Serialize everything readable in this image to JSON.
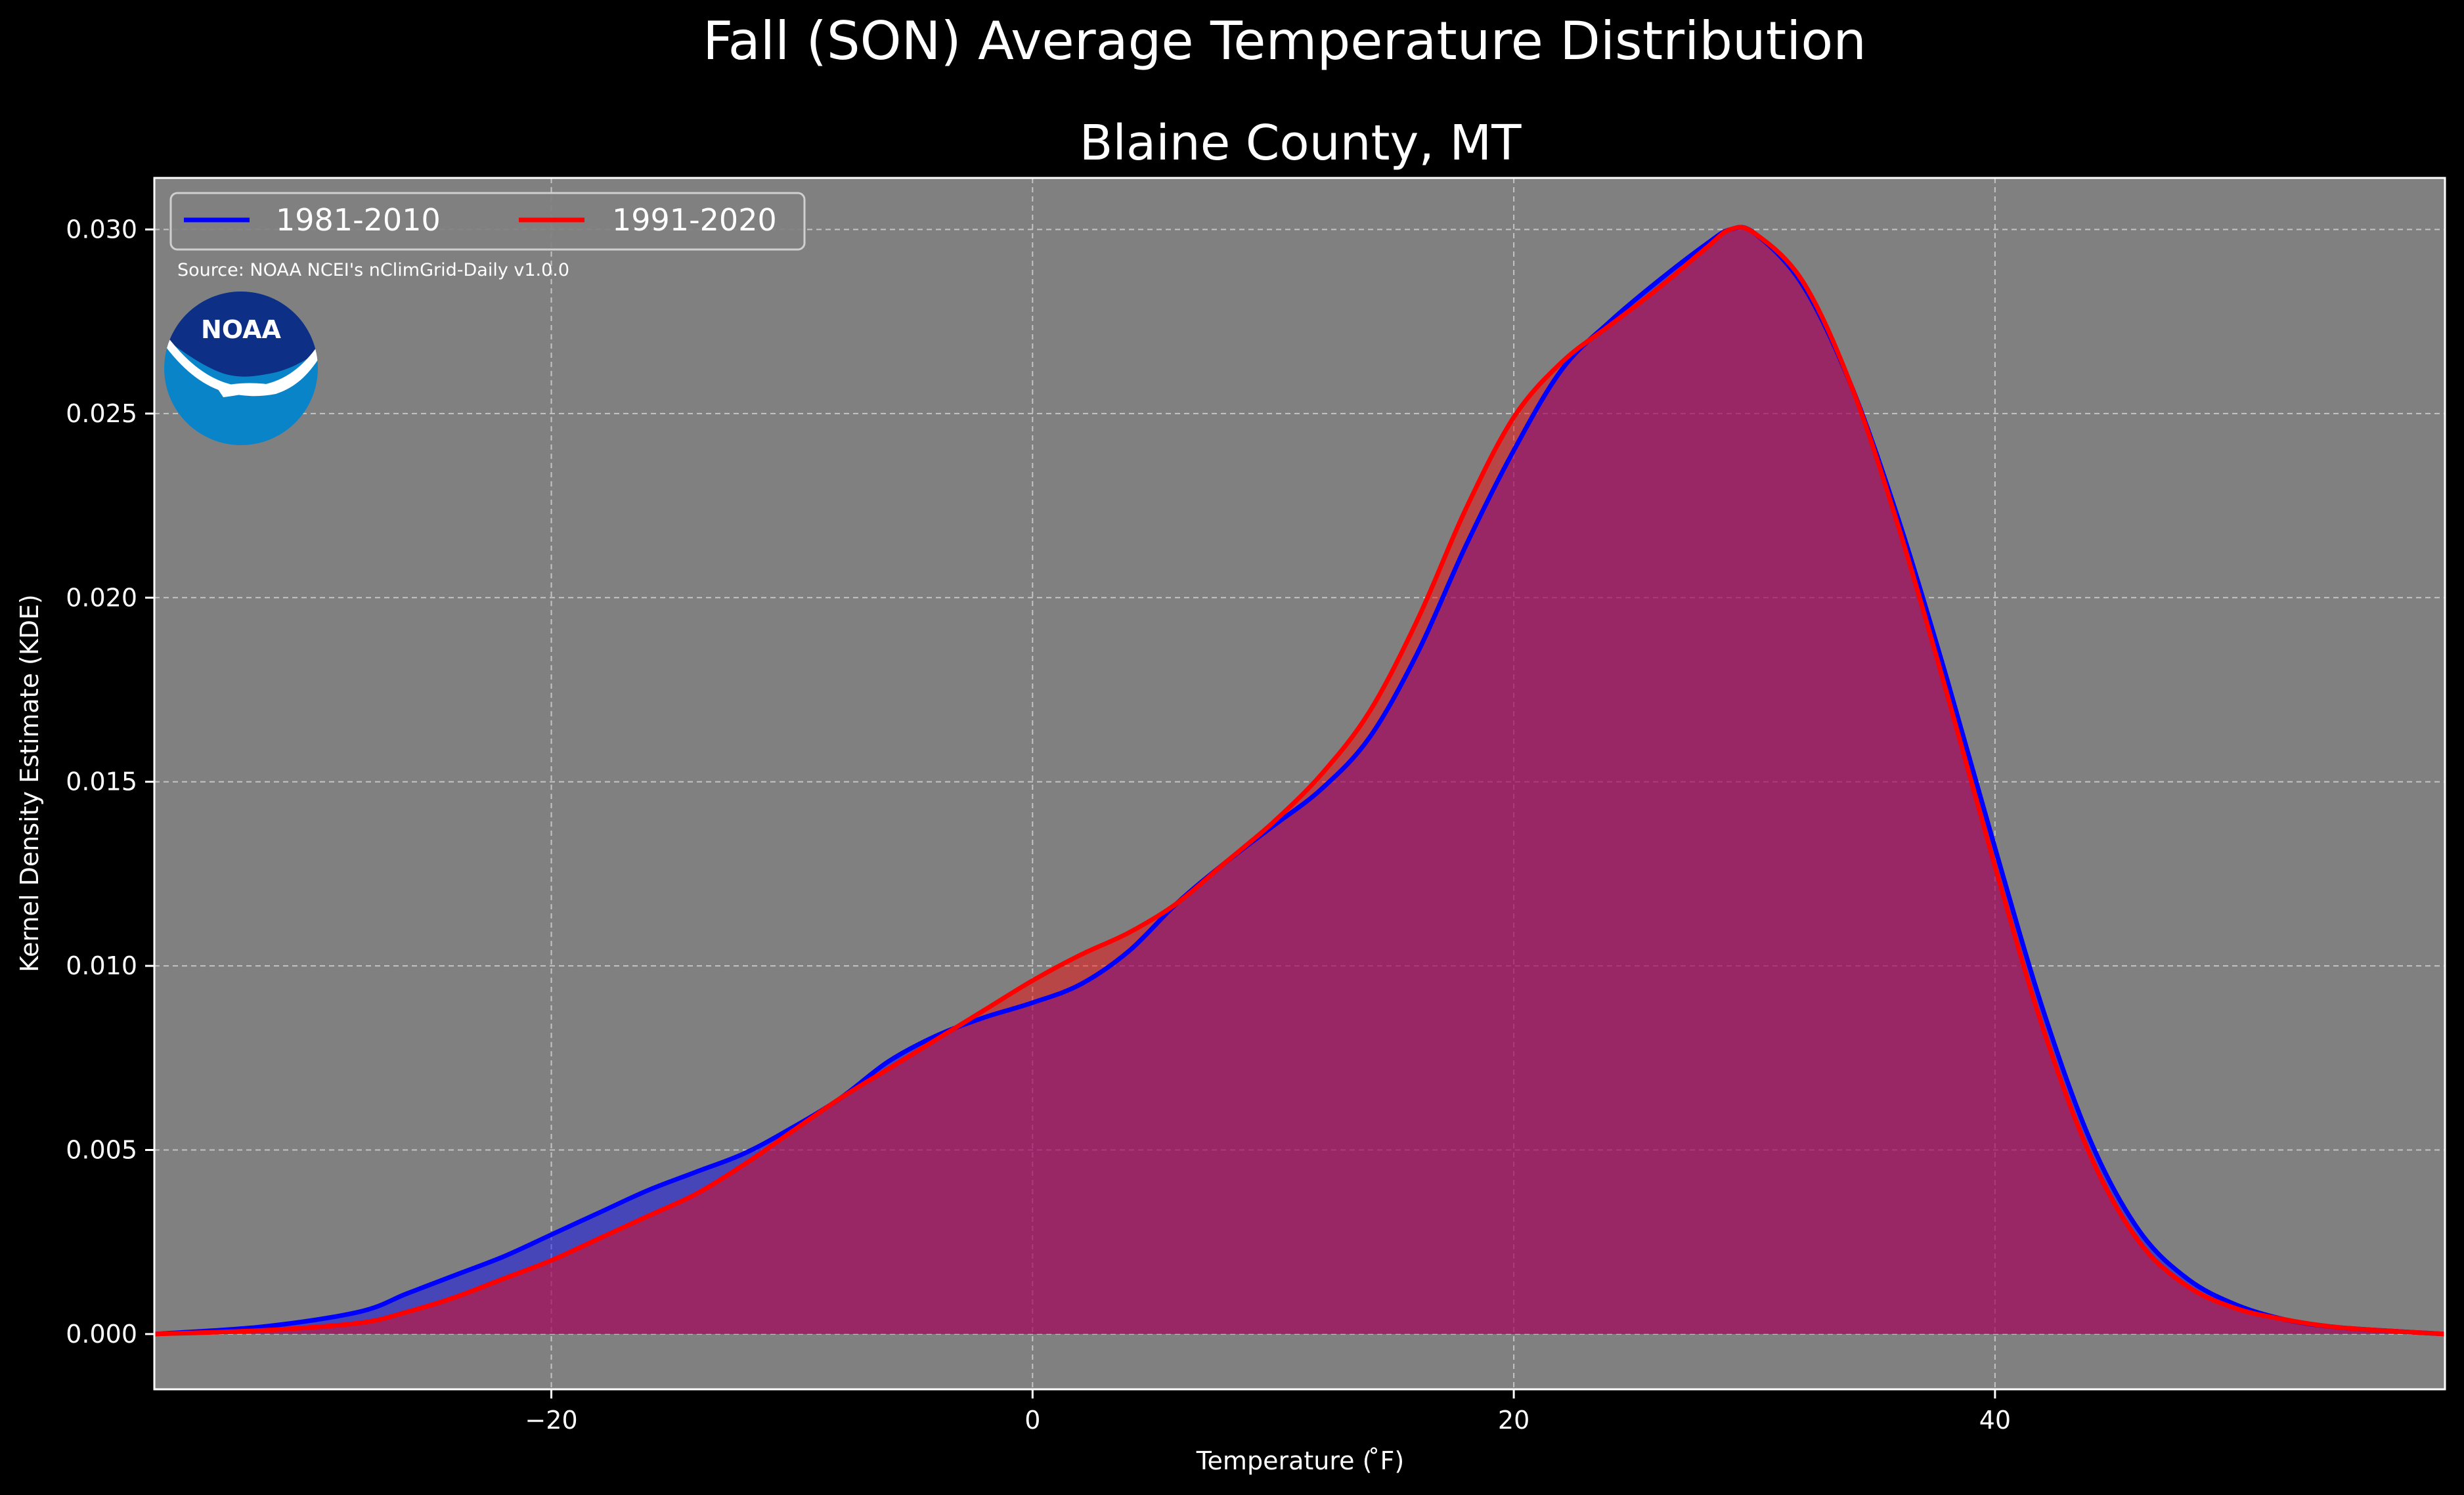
{
  "chart_data": {
    "type": "area",
    "suptitle": "Fall (SON) Average Temperature Distribution",
    "title": "Blaine County, MT",
    "xlabel": "Temperature ($^\\circ$F)",
    "xlabel_display": "Temperature ( ̊F)",
    "ylabel": "Kernel Density Estimate (KDE)",
    "xlim": [
      -36.5,
      58.7
    ],
    "ylim": [
      -0.0015,
      0.0314
    ],
    "xticks": [
      -20,
      0,
      20,
      40
    ],
    "xtick_labels": [
      "−20",
      "0",
      "20",
      "40"
    ],
    "yticks": [
      0.0,
      0.005,
      0.01,
      0.015,
      0.02,
      0.025,
      0.03
    ],
    "ytick_labels": [
      "0.000",
      "0.005",
      "0.010",
      "0.015",
      "0.020",
      "0.025",
      "0.030"
    ],
    "grid": true,
    "legend_placement": "top-left",
    "source": "Source: NOAA NCEI's nClimGrid-Daily v1.0.0",
    "logo_text": "NOAA",
    "background_color": "#000000",
    "axes_color": "#808080",
    "series": [
      {
        "name": "1981-2010",
        "color": "#0000ff",
        "fill": "#0000ff",
        "x": [
          -36.5,
          -32,
          -28,
          -26,
          -24,
          -22,
          -20,
          -18,
          -16,
          -14,
          -12,
          -10,
          -8,
          -6,
          -4,
          -2,
          0,
          2,
          4,
          6,
          8,
          10,
          12,
          14,
          16,
          18,
          20,
          22,
          24,
          26,
          28,
          29,
          30,
          32,
          34,
          36,
          38,
          40,
          42,
          44,
          46,
          48,
          50,
          52,
          54,
          56,
          58.7
        ],
        "y": [
          0.0,
          0.0002,
          0.0006,
          0.0011,
          0.0016,
          0.0021,
          0.0027,
          0.0033,
          0.0039,
          0.0044,
          0.0049,
          0.0056,
          0.0064,
          0.0074,
          0.0081,
          0.0086,
          0.009,
          0.0095,
          0.0104,
          0.0117,
          0.0128,
          0.0138,
          0.0148,
          0.0162,
          0.0185,
          0.0214,
          0.024,
          0.0262,
          0.0275,
          0.0286,
          0.0296,
          0.03,
          0.0299,
          0.0285,
          0.0258,
          0.0221,
          0.0178,
          0.0132,
          0.0088,
          0.0052,
          0.0028,
          0.0015,
          0.0008,
          0.0004,
          0.0002,
          0.0001,
          0.0
        ]
      },
      {
        "name": "1991-2020",
        "color": "#ff0000",
        "fill": "#ff0000",
        "x": [
          -36.5,
          -32,
          -28,
          -26,
          -24,
          -22,
          -20,
          -18,
          -16,
          -14,
          -12,
          -10,
          -8,
          -6,
          -4,
          -2,
          0,
          2,
          4,
          6,
          8,
          10,
          12,
          14,
          16,
          18,
          20,
          22,
          24,
          26,
          28,
          29,
          30,
          32,
          34,
          36,
          38,
          40,
          42,
          44,
          46,
          48,
          50,
          52,
          54,
          56,
          58.7
        ],
        "y": [
          0.0,
          0.0001,
          0.0003,
          0.0006,
          0.001,
          0.0015,
          0.002,
          0.0026,
          0.0032,
          0.0038,
          0.0046,
          0.0055,
          0.0064,
          0.0072,
          0.008,
          0.0088,
          0.0096,
          0.0103,
          0.0109,
          0.0117,
          0.0128,
          0.0139,
          0.0152,
          0.0169,
          0.0194,
          0.0224,
          0.0249,
          0.0264,
          0.0274,
          0.0284,
          0.0295,
          0.03,
          0.0299,
          0.0286,
          0.0258,
          0.0219,
          0.0174,
          0.0127,
          0.0083,
          0.0048,
          0.0025,
          0.0013,
          0.0007,
          0.0004,
          0.0002,
          0.0001,
          0.0
        ]
      }
    ]
  }
}
